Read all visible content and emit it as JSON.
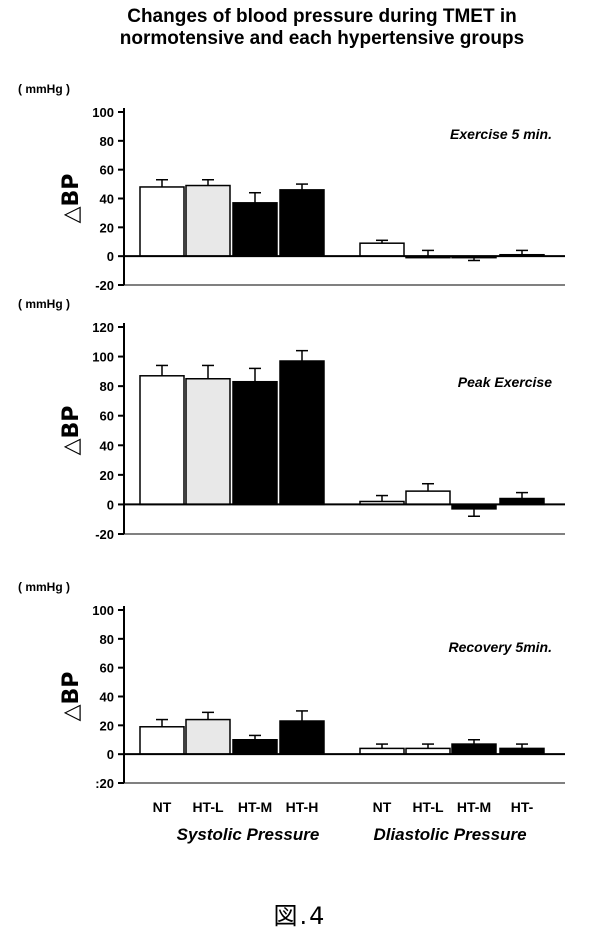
{
  "title_line1": "Changes of blood pressure during TMET in",
  "title_line2": "normotensive and each hypertensive groups",
  "unit_label": "( mmHg )",
  "ylabel": "△BP",
  "figure_caption": "図.4",
  "group_labels": [
    "Systolic Pressure",
    "Dliastolic Pressure"
  ],
  "category_labels": [
    "NT",
    "HT-L",
    "HT-M",
    "HT-H",
    "NT",
    "HT-L",
    "HT-M",
    "HT-"
  ],
  "fill_by_category": [
    "#ffffff",
    "#e8e8e8",
    "#000000",
    "#000000",
    "#ffffff",
    "#ffffff",
    "#000000",
    "#000000"
  ],
  "chart_data": [
    {
      "type": "bar",
      "panel_label": "Exercise 5 min.",
      "ylim": [
        -20,
        100
      ],
      "yticks": [
        -20,
        0,
        20,
        40,
        60,
        80,
        100
      ],
      "categories": [
        "NT",
        "HT-L",
        "HT-M",
        "HT-H",
        "NT",
        "HT-L",
        "HT-M",
        "HT-"
      ],
      "values": [
        48,
        49,
        37,
        46,
        9,
        0,
        -1,
        1
      ],
      "errors": [
        5,
        4,
        7,
        4,
        2,
        4,
        2,
        3
      ]
    },
    {
      "type": "bar",
      "panel_label": "Peak Exercise",
      "ylim": [
        -20,
        120
      ],
      "yticks": [
        -20,
        0,
        20,
        40,
        60,
        80,
        100,
        120
      ],
      "categories": [
        "NT",
        "HT-L",
        "HT-M",
        "HT-H",
        "NT",
        "HT-L",
        "HT-M",
        "HT-"
      ],
      "values": [
        87,
        85,
        83,
        97,
        2,
        9,
        -3,
        4
      ],
      "errors": [
        7,
        9,
        9,
        7,
        4,
        5,
        5,
        4
      ]
    },
    {
      "type": "bar",
      "panel_label": "Recovery 5min.",
      "ylim": [
        -20,
        100
      ],
      "yticks": [
        -20,
        0,
        20,
        40,
        60,
        80,
        100
      ],
      "ytick_labels": [
        ":20",
        "0",
        "20",
        "40",
        "60",
        "80",
        "100"
      ],
      "categories": [
        "NT",
        "HT-L",
        "HT-M",
        "HT-H",
        "NT",
        "HT-L",
        "HT-M",
        "HT-"
      ],
      "values": [
        19,
        24,
        10,
        23,
        4,
        4,
        7,
        4
      ],
      "errors": [
        5,
        5,
        3,
        7,
        3,
        3,
        3,
        3
      ]
    }
  ]
}
